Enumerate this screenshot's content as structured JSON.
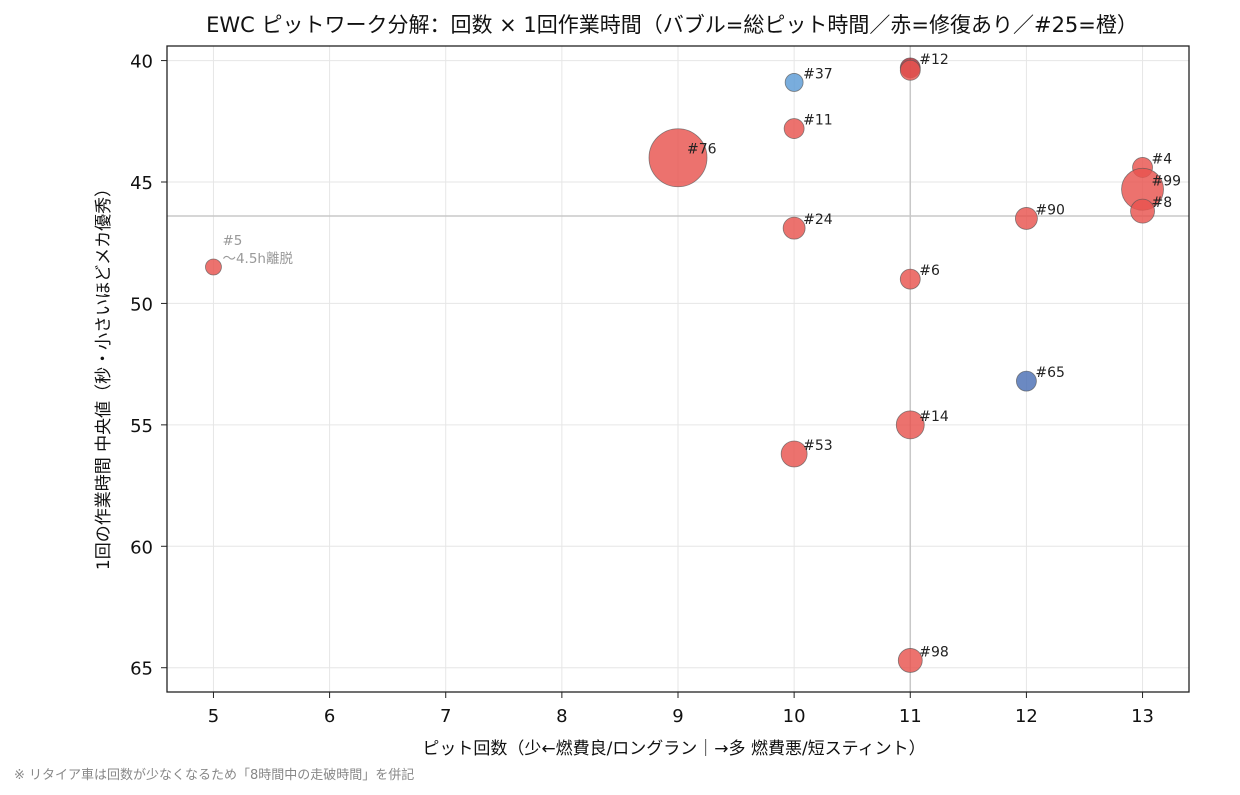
{
  "chart_data": {
    "type": "scatter",
    "title": "EWC ピットワーク分解：回数 × 1回作業時間（バブル=総ピット時間／赤=修復あり／#25=橙）",
    "xlabel": "ピット回数（少←燃費良/ロングラン｜→多 燃費悪/短スティント）",
    "ylabel": "1回の作業時間 中央値（秒・小さいほどメカ優秀）",
    "xlim": [
      4.6,
      13.4
    ],
    "ylim": [
      66,
      39.4
    ],
    "y_inverted": true,
    "x_ticks": [
      5,
      6,
      7,
      8,
      9,
      10,
      11,
      12,
      13
    ],
    "y_ticks": [
      40,
      45,
      50,
      55,
      60,
      65
    ],
    "grid": true,
    "reference_lines": {
      "x": 11,
      "y": 46.4
    },
    "colors": {
      "repair": "#e8534e",
      "no_repair_blue": "#5b9bd5",
      "no_repair_navy": "#4a6fb5",
      "dark": "#a52a33",
      "reference": "#c8c8c8"
    },
    "points": [
      {
        "label": "#12",
        "x": 11,
        "y": 40.3,
        "size": 10,
        "color": "#a52a33"
      },
      {
        "label": "",
        "x": 11,
        "y": 40.4,
        "size": 10,
        "color": "#e8534e"
      },
      {
        "label": "#37",
        "x": 10,
        "y": 40.9,
        "size": 9,
        "color": "#5b9bd5"
      },
      {
        "label": "#11",
        "x": 10,
        "y": 42.8,
        "size": 10,
        "color": "#e8534e"
      },
      {
        "label": "#76",
        "x": 9,
        "y": 44.0,
        "size": 29,
        "color": "#e8534e"
      },
      {
        "label": "#4",
        "x": 13,
        "y": 44.4,
        "size": 10,
        "color": "#e8534e"
      },
      {
        "label": "#99",
        "x": 13,
        "y": 45.3,
        "size": 21,
        "color": "#e8534e"
      },
      {
        "label": "#8",
        "x": 13,
        "y": 46.2,
        "size": 12,
        "color": "#e8534e"
      },
      {
        "label": "#90",
        "x": 12,
        "y": 46.5,
        "size": 11,
        "color": "#e8534e"
      },
      {
        "label": "#24",
        "x": 10,
        "y": 46.9,
        "size": 11,
        "color": "#e8534e"
      },
      {
        "label": "#5",
        "x": 5,
        "y": 48.5,
        "size": 8,
        "color": "#e8534e",
        "note": "〜4.5h離脱"
      },
      {
        "label": "#6",
        "x": 11,
        "y": 49.0,
        "size": 10,
        "color": "#e8534e"
      },
      {
        "label": "#65",
        "x": 12,
        "y": 53.2,
        "size": 10,
        "color": "#4a6fb5"
      },
      {
        "label": "#14",
        "x": 11,
        "y": 55.0,
        "size": 14,
        "color": "#e8534e"
      },
      {
        "label": "#53",
        "x": 10,
        "y": 56.2,
        "size": 13,
        "color": "#e8534e"
      },
      {
        "label": "#98",
        "x": 11,
        "y": 64.7,
        "size": 12,
        "color": "#e8534e"
      }
    ]
  },
  "footnote": "※ リタイア車は回数が少なくなるため「8時間中の走破時間」を併記"
}
